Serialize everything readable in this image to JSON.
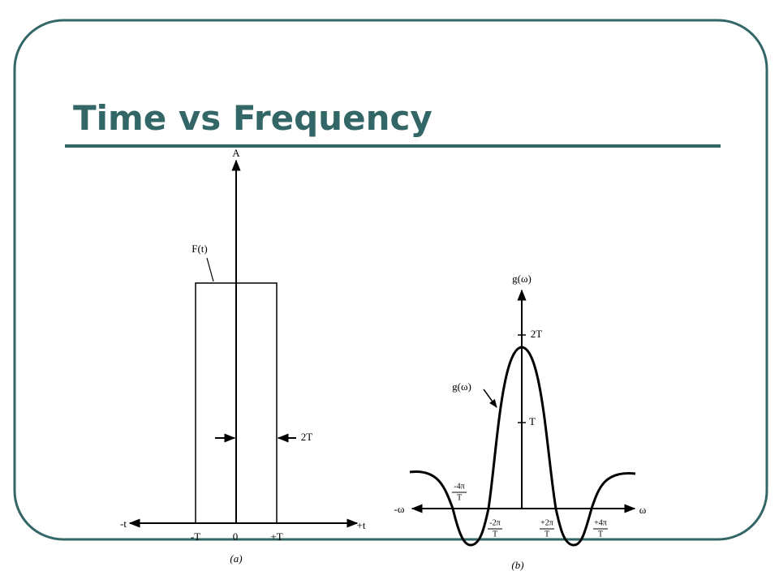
{
  "title": "Time vs Frequency",
  "figure_a": {
    "y_axis": "A",
    "function": "F(t)",
    "width": "2T",
    "x_negative": "-t",
    "x_positive": "+t",
    "ticks": [
      "-T",
      "0",
      "+T"
    ],
    "caption": "(a)"
  },
  "figure_b": {
    "y_axis": "g(ω)",
    "function": "g(ω)",
    "x_negative": "-ω",
    "x_positive": "ω",
    "y_ticks": [
      "2T",
      "T"
    ],
    "x_ticks": [
      [
        "-4π",
        "T"
      ],
      [
        "-2π",
        "T"
      ],
      [
        "+2π",
        "T"
      ],
      [
        "+4π",
        "T"
      ]
    ],
    "caption": "(b)"
  }
}
